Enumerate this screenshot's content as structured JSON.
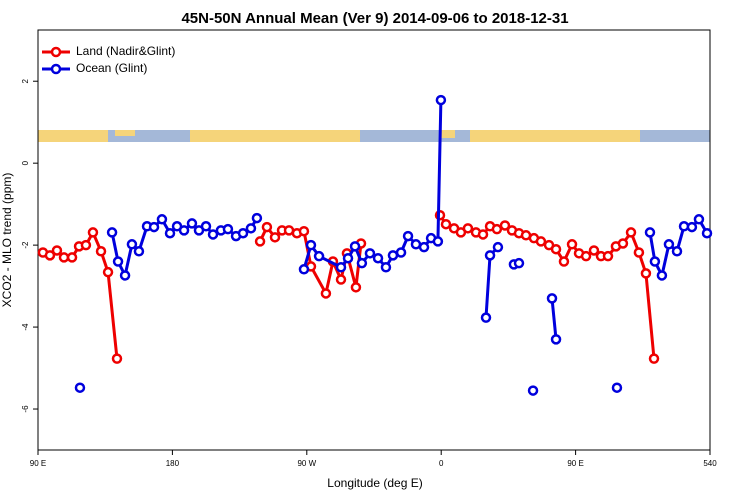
{
  "chart_data": {
    "type": "line",
    "title": "45N-50N Annual Mean (Ver 9)   2014-09-06 to 2018-12-31",
    "x_label": "Longitude (deg E)",
    "y_label": "XCO2 - MLO trend (ppm)",
    "xlim": [
      90,
      540
    ],
    "ylim": [
      -7,
      3.25
    ],
    "xticks": [
      {
        "value": 90,
        "label": "90 E"
      },
      180,
      {
        "value": 270,
        "label": "90 W"
      },
      {
        "value": 360,
        "label": "0"
      },
      {
        "value": 450,
        "label": "90 E"
      },
      540
    ],
    "yticks": [
      -6,
      -4,
      -2,
      0,
      2
    ],
    "legend": "top-left",
    "series": [
      {
        "name": "Land (Nadir&Glint)",
        "color": "#ee0000",
        "x": [
          93.3,
          98.0,
          102.7,
          107.4,
          112.8,
          117.5,
          122.1,
          126.8,
          132.2,
          136.9,
          142.9,
          null,
          238.7,
          243.3,
          248.7,
          253.4,
          258.1,
          263.4,
          268.1,
          272.8,
          282.8,
          287.5,
          292.9,
          296.9,
          302.9,
          306.3,
          null,
          359.2,
          363.2,
          368.6,
          373.2,
          377.9,
          383.3,
          388.0,
          392.7,
          397.3,
          402.7,
          407.4,
          412.1,
          416.8,
          422.1,
          426.8,
          432.2,
          436.9,
          442.2,
          447.6,
          452.3,
          457.0,
          462.3,
          467.0,
          471.7,
          477.0,
          481.7,
          487.1,
          492.4,
          497.1,
          502.5
        ],
        "values": [
          -2.18,
          -2.25,
          -2.13,
          -2.3,
          -2.3,
          -2.03,
          -2.0,
          -1.69,
          -2.15,
          -2.66,
          -4.77,
          null,
          -1.91,
          -1.56,
          -1.81,
          -1.64,
          -1.64,
          -1.71,
          -1.66,
          -2.52,
          -3.18,
          -2.4,
          -2.84,
          -2.2,
          -3.03,
          -1.96,
          null,
          -1.27,
          -1.49,
          -1.59,
          -1.69,
          -1.59,
          -1.69,
          -1.74,
          -1.54,
          -1.61,
          -1.52,
          -1.64,
          -1.71,
          -1.76,
          -1.83,
          -1.91,
          -2.0,
          -2.1,
          -2.4,
          -1.98,
          -2.2,
          -2.27,
          -2.13,
          -2.27,
          -2.27,
          -2.03,
          -1.96,
          -1.69,
          -2.18,
          -2.69,
          -4.77
        ]
      },
      {
        "name": "Ocean (Glint)",
        "color": "#0000dd",
        "x": [
          118.1,
          null,
          139.6,
          143.6,
          148.3,
          152.9,
          157.6,
          163.0,
          167.7,
          173.0,
          178.4,
          183.1,
          187.8,
          193.1,
          197.8,
          202.5,
          207.2,
          212.5,
          217.2,
          222.6,
          227.3,
          232.6,
          236.6,
          null,
          268.1,
          272.8,
          278.2,
          292.9,
          297.6,
          302.3,
          306.9,
          312.3,
          317.7,
          323.0,
          327.7,
          333.1,
          337.8,
          343.1,
          348.5,
          353.2,
          357.8,
          359.8,
          null,
          390.0,
          392.7,
          398.0,
          null,
          408.7,
          412.1,
          null,
          421.5,
          null,
          434.2,
          436.9,
          null,
          477.7,
          null,
          499.8,
          503.1,
          507.8,
          512.5,
          517.9,
          522.6,
          527.9,
          532.6,
          538.0
        ],
        "values": [
          -5.48,
          null,
          -1.69,
          -2.4,
          -2.74,
          -1.98,
          -2.15,
          -1.54,
          -1.56,
          -1.37,
          -1.71,
          -1.54,
          -1.64,
          -1.47,
          -1.64,
          -1.54,
          -1.74,
          -1.64,
          -1.61,
          -1.78,
          -1.71,
          -1.59,
          -1.34,
          null,
          -2.59,
          -2.0,
          -2.27,
          -2.54,
          -2.32,
          -2.03,
          -2.44,
          -2.2,
          -2.32,
          -2.54,
          -2.25,
          -2.18,
          -1.78,
          -1.98,
          -2.05,
          -1.83,
          -1.91,
          1.54,
          null,
          -3.77,
          -2.25,
          -2.05,
          null,
          -2.47,
          -2.44,
          null,
          -5.55,
          null,
          -3.3,
          -4.3,
          null,
          -5.48,
          null,
          -1.69,
          -2.4,
          -2.74,
          -1.98,
          -2.15,
          -1.54,
          -1.56,
          -1.37,
          -1.71
        ]
      }
    ]
  }
}
